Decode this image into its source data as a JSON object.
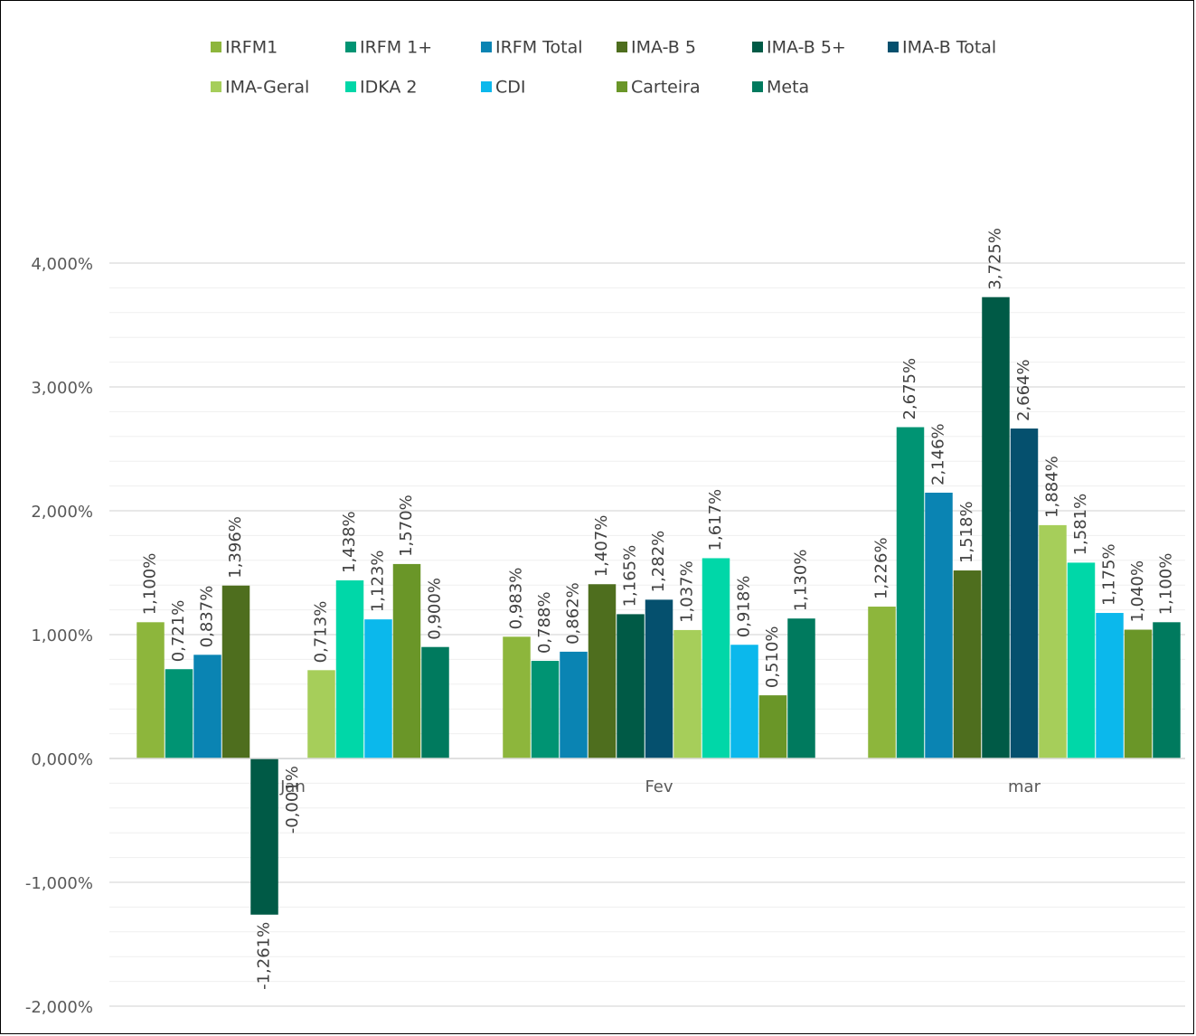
{
  "chart_data": {
    "type": "bar",
    "title": "",
    "xlabel": "",
    "ylabel": "",
    "categories": [
      "Jan",
      "Fev",
      "mar"
    ],
    "ylim": [
      -2.0,
      4.0
    ],
    "yticks": [
      4.0,
      3.0,
      2.0,
      1.0,
      0.0,
      -1.0,
      -2.0
    ],
    "ytick_labels": [
      "4,000%",
      "3,000%",
      "2,000%",
      "1,000%",
      "0,000%",
      "-1,000%",
      "-2,000%"
    ],
    "grid": "horizontal major and minor",
    "legend_position": "top",
    "series": [
      {
        "name": "IRFM1",
        "color": "#8DB63C",
        "values": [
          1.1,
          0.983,
          1.226
        ],
        "labels": [
          "1,100%",
          "0,983%",
          "1,226%"
        ]
      },
      {
        "name": "IRFM 1+",
        "color": "#009473",
        "values": [
          0.721,
          0.788,
          2.675
        ],
        "labels": [
          "0,721%",
          "0,788%",
          "2,675%"
        ]
      },
      {
        "name": "IRFM Total",
        "color": "#0A84B3",
        "values": [
          0.837,
          0.862,
          2.146
        ],
        "labels": [
          "0,837%",
          "0,862%",
          "2,146%"
        ]
      },
      {
        "name": "IMA-B 5",
        "color": "#4E6E1E",
        "values": [
          1.396,
          1.407,
          1.518
        ],
        "labels": [
          "1,396%",
          "1,407%",
          "1,518%"
        ]
      },
      {
        "name": "IMA-B 5+",
        "color": "#005A46",
        "values": [
          -1.261,
          1.165,
          3.725
        ],
        "labels": [
          "-1,261%",
          "1,165%",
          "3,725%"
        ]
      },
      {
        "name": "IMA-B Total",
        "color": "#05506E",
        "values": [
          -0.001,
          1.282,
          2.664
        ],
        "labels": [
          "-0,001%",
          "1,282%",
          "2,664%"
        ]
      },
      {
        "name": "IMA-Geral",
        "color": "#A6CE5A",
        "values": [
          0.713,
          1.037,
          1.884
        ],
        "labels": [
          "0,713%",
          "1,037%",
          "1,884%"
        ]
      },
      {
        "name": "IDKA 2",
        "color": "#00D7A8",
        "values": [
          1.438,
          1.617,
          1.581
        ],
        "labels": [
          "1,438%",
          "1,617%",
          "1,581%"
        ]
      },
      {
        "name": "CDI",
        "color": "#0BB8EC",
        "values": [
          1.123,
          0.918,
          1.175
        ],
        "labels": [
          "1,123%",
          "0,918%",
          "1,175%"
        ]
      },
      {
        "name": "Carteira",
        "color": "#6A9628",
        "values": [
          1.57,
          0.51,
          1.04
        ],
        "labels": [
          "1,570%",
          "0,510%",
          "1,040%"
        ]
      },
      {
        "name": "Meta",
        "color": "#007A5E",
        "values": [
          0.9,
          1.13,
          1.1
        ],
        "labels": [
          "0,900%",
          "1,130%",
          "1,100%"
        ]
      }
    ]
  }
}
